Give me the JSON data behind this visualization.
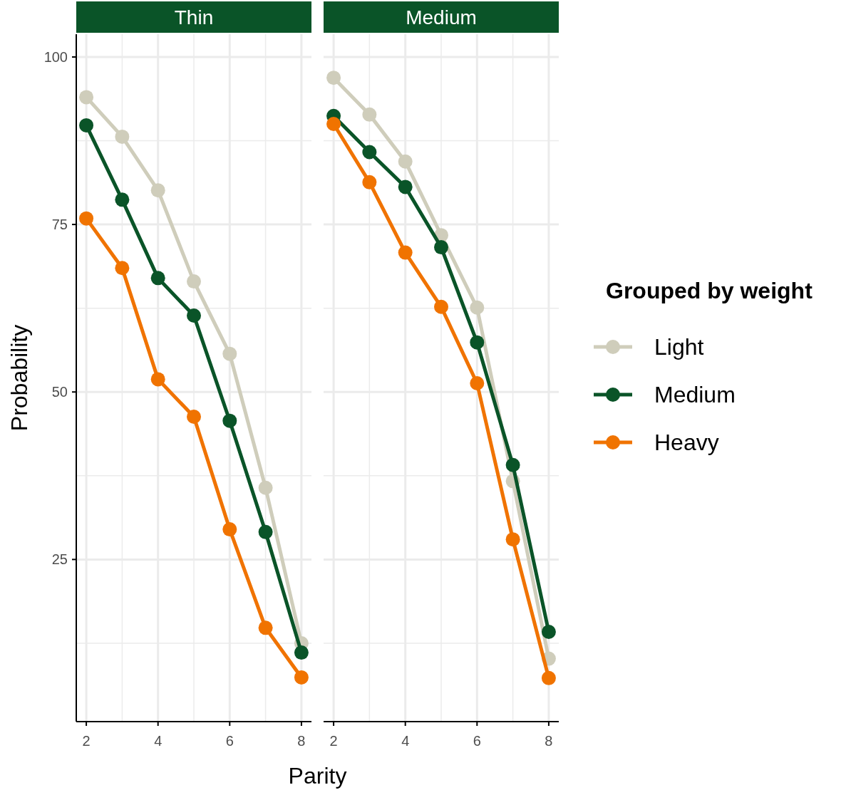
{
  "chart_data": [
    {
      "type": "line",
      "title": "Thin",
      "xlabel": "Parity",
      "ylabel": "Probability",
      "legend_title": "Grouped by weight",
      "legend": "right",
      "grid": true,
      "marker": "circle",
      "line_style": "solid",
      "xlim": [
        1.72,
        8.28
      ],
      "ylim": [
        0.8,
        103.4
      ],
      "xticks": [
        2,
        4,
        6,
        8
      ],
      "yticks": [
        25,
        50,
        75,
        100
      ],
      "x": [
        2,
        3,
        4,
        5,
        6,
        7,
        8
      ],
      "series": [
        {
          "name": "Light",
          "color": "#cfcdbb",
          "values": [
            94.0,
            88.1,
            80.1,
            66.5,
            55.7,
            35.7,
            12.5
          ]
        },
        {
          "name": "Medium",
          "color": "#0a5428",
          "values": [
            89.8,
            78.7,
            67.0,
            61.4,
            45.7,
            29.1,
            11.1
          ]
        },
        {
          "name": "Heavy",
          "color": "#f07300",
          "values": [
            75.9,
            68.5,
            51.9,
            46.3,
            29.5,
            14.8,
            7.4
          ]
        }
      ]
    },
    {
      "type": "line",
      "title": "Medium",
      "tick_labels": "x",
      "grid": true,
      "marker": "circle",
      "line_style": "solid",
      "xlim": [
        1.72,
        8.28
      ],
      "ylim": [
        0.8,
        103.4
      ],
      "xticks": [
        2,
        4,
        6,
        8
      ],
      "yticks": [
        25,
        50,
        75,
        100
      ],
      "x": [
        2,
        3,
        4,
        5,
        6,
        7,
        8
      ],
      "series": [
        {
          "color": "#cfcdbb",
          "values": [
            96.9,
            91.4,
            84.4,
            73.4,
            62.6,
            36.7,
            10.2
          ]
        },
        {
          "color": "#0a5428",
          "values": [
            91.2,
            85.8,
            80.6,
            71.6,
            57.4,
            39.1,
            14.2
          ]
        },
        {
          "color": "#f07300",
          "values": [
            90.0,
            81.3,
            70.8,
            62.7,
            51.3,
            28.0,
            7.3
          ]
        }
      ]
    }
  ]
}
